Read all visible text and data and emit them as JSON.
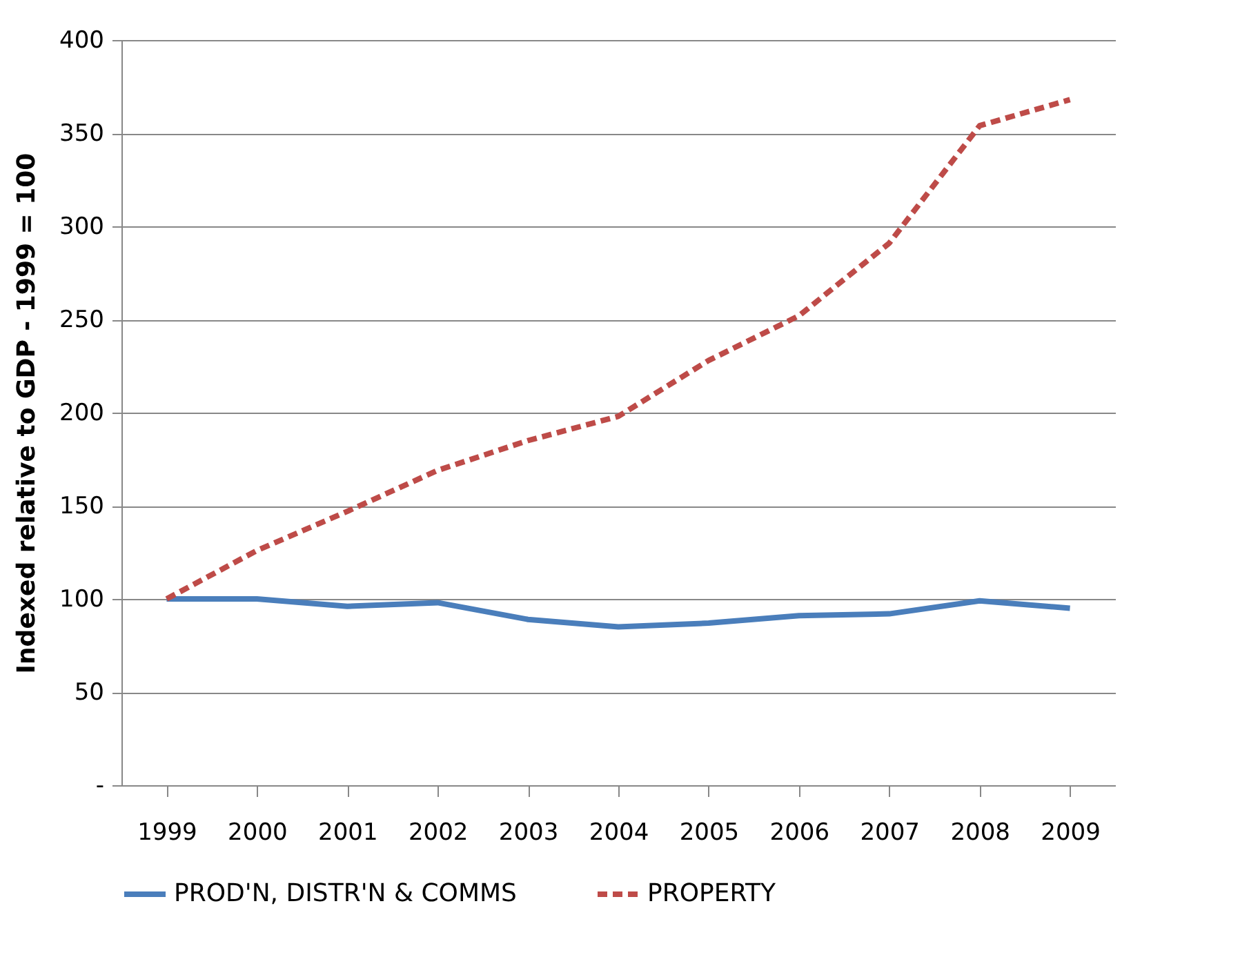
{
  "chart_data": {
    "type": "line",
    "ylabel": "Indexed relative to GDP - 1999 = 100",
    "categories": [
      "1999",
      "2000",
      "2001",
      "2002",
      "2003",
      "2004",
      "2005",
      "2006",
      "2007",
      "2008",
      "2009"
    ],
    "series": [
      {
        "name": "PROD'N, DISTR'N & COMMS",
        "color": "#4a7ebb",
        "line_style": "solid",
        "values": [
          100,
          100,
          96,
          98,
          89,
          85,
          87,
          91,
          92,
          99,
          95
        ]
      },
      {
        "name": "PROPERTY",
        "color": "#be4b48",
        "line_style": "dashed",
        "values": [
          100,
          126,
          147,
          169,
          185,
          198,
          228,
          252,
          291,
          354,
          368
        ]
      }
    ],
    "ylim": [
      0,
      400
    ],
    "yticks": [
      {
        "value": 0,
        "label": "-"
      },
      50,
      100,
      150,
      200,
      250,
      300,
      350,
      400
    ],
    "grid": "y",
    "legend": "bottom",
    "marker": "none"
  }
}
